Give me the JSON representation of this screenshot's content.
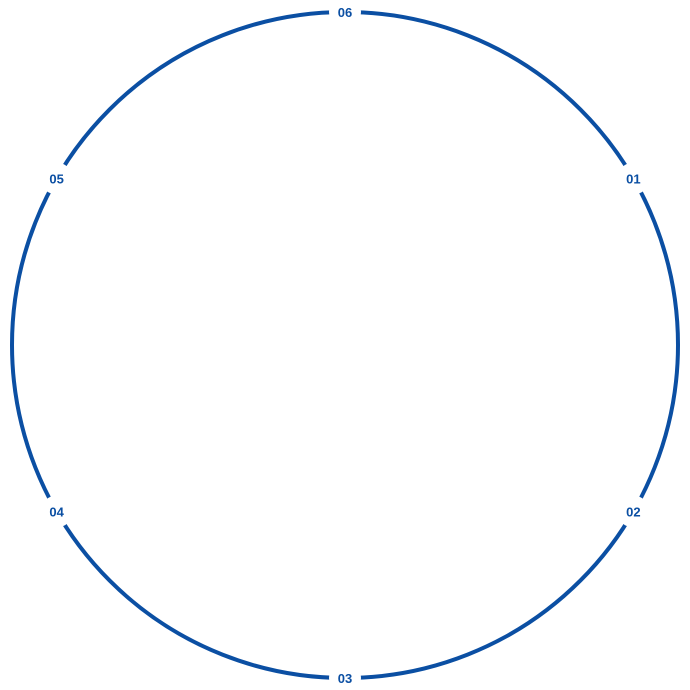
{
  "diagram": {
    "ring_color": "#0b4fa3",
    "labels": [
      "01",
      "02",
      "03",
      "04",
      "05",
      "06"
    ]
  }
}
